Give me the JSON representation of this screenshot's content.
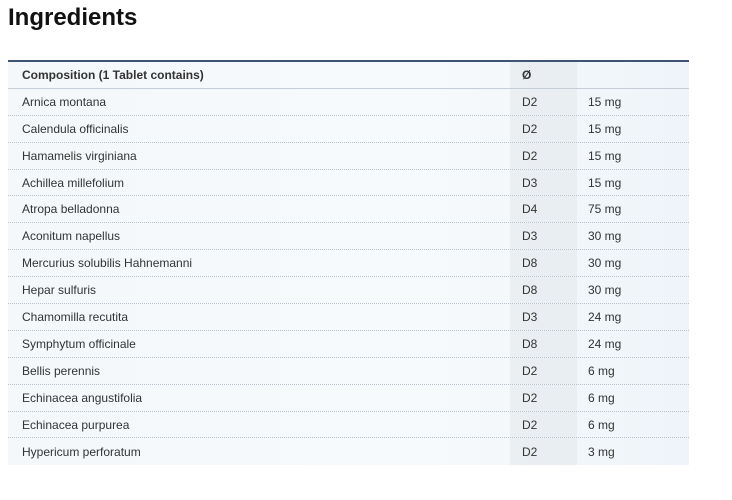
{
  "title": "Ingredients",
  "table": {
    "headers": [
      "Composition (1 Tablet contains)",
      "Ø",
      ""
    ],
    "rows": [
      [
        "Arnica montana",
        "D2",
        "15 mg"
      ],
      [
        "Calendula officinalis",
        "D2",
        "15 mg"
      ],
      [
        "Hamamelis virginiana",
        "D2",
        "15 mg"
      ],
      [
        "Achillea millefolium",
        "D3",
        "15 mg"
      ],
      [
        "Atropa belladonna",
        "D4",
        "75 mg"
      ],
      [
        "Aconitum napellus",
        "D3",
        "30 mg"
      ],
      [
        "Mercurius solubilis Hahnemanni",
        "D8",
        "30 mg"
      ],
      [
        "Hepar sulfuris",
        "D8",
        "30 mg"
      ],
      [
        "Chamomilla recutita",
        "D3",
        "24 mg"
      ],
      [
        "Symphytum officinale",
        "D8",
        "24 mg"
      ],
      [
        "Bellis perennis",
        "D2",
        "6 mg"
      ],
      [
        "Echinacea angustifolia",
        "D2",
        "6 mg"
      ],
      [
        "Echinacea purpurea",
        "D2",
        "6 mg"
      ],
      [
        "Hypericum perforatum",
        "D2",
        "3 mg"
      ]
    ]
  }
}
